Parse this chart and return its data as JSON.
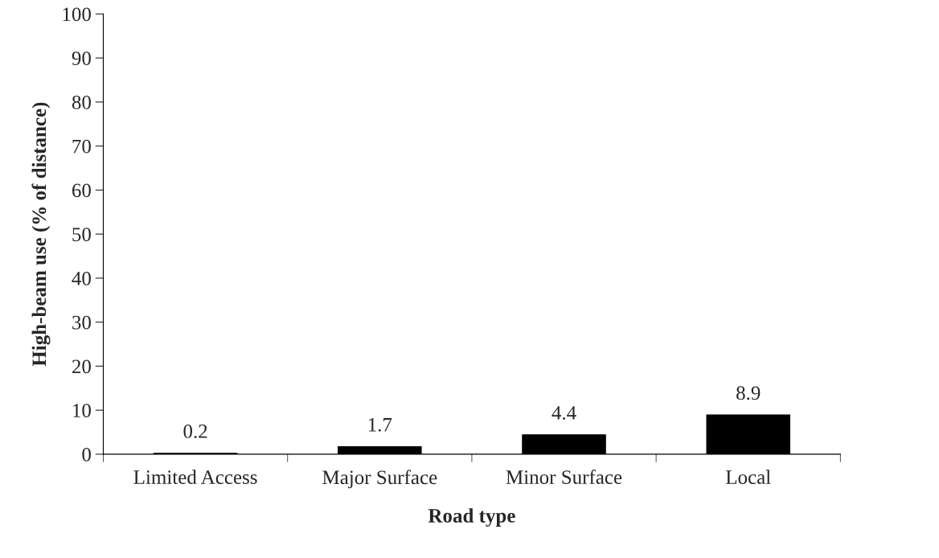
{
  "chart_data": {
    "type": "bar",
    "xlabel": "Road type",
    "ylabel": "High-beam use (% of distance)",
    "categories": [
      "Limited Access",
      "Major Surface",
      "Minor Surface",
      "Local"
    ],
    "values": [
      0.2,
      1.7,
      4.4,
      8.9
    ],
    "color": "#000000",
    "ylim": [
      0,
      100
    ],
    "yticks": [
      0,
      10,
      20,
      30,
      40,
      50,
      60,
      70,
      80,
      90,
      100
    ],
    "data_labels": true,
    "grid": false,
    "legend": false
  }
}
